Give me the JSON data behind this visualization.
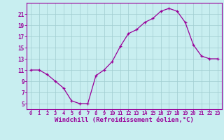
{
  "x": [
    0,
    1,
    2,
    3,
    4,
    5,
    6,
    7,
    8,
    9,
    10,
    11,
    12,
    13,
    14,
    15,
    16,
    17,
    18,
    19,
    20,
    21,
    22,
    23
  ],
  "y": [
    11,
    11,
    10.2,
    9,
    7.8,
    5.5,
    5,
    5,
    10,
    11,
    12.5,
    15.2,
    17.5,
    18.2,
    19.5,
    20.2,
    21.5,
    22,
    21.5,
    19.5,
    15.5,
    13.5,
    13,
    13
  ],
  "line_color": "#990099",
  "marker": "+",
  "marker_size": 3.5,
  "marker_linewidth": 0.9,
  "bg_color": "#c8eef0",
  "grid_color": "#a0ccd0",
  "xlabel": "Windchill (Refroidissement éolien,°C)",
  "xlabel_fontsize": 6.5,
  "xtick_labels": [
    "0",
    "1",
    "2",
    "3",
    "4",
    "5",
    "6",
    "7",
    "8",
    "9",
    "10",
    "11",
    "12",
    "13",
    "14",
    "15",
    "16",
    "17",
    "18",
    "19",
    "20",
    "21",
    "22",
    "23"
  ],
  "ytick_labels": [
    "5",
    "7",
    "9",
    "11",
    "13",
    "15",
    "17",
    "19",
    "21"
  ],
  "ytick_values": [
    5,
    7,
    9,
    11,
    13,
    15,
    17,
    19,
    21
  ],
  "ylim": [
    4.0,
    23.0
  ],
  "xlim": [
    -0.5,
    23.5
  ],
  "tick_color": "#990099",
  "tick_label_color": "#990099",
  "spine_color": "#990099",
  "axis_label_color": "#990099",
  "linewidth": 0.9
}
